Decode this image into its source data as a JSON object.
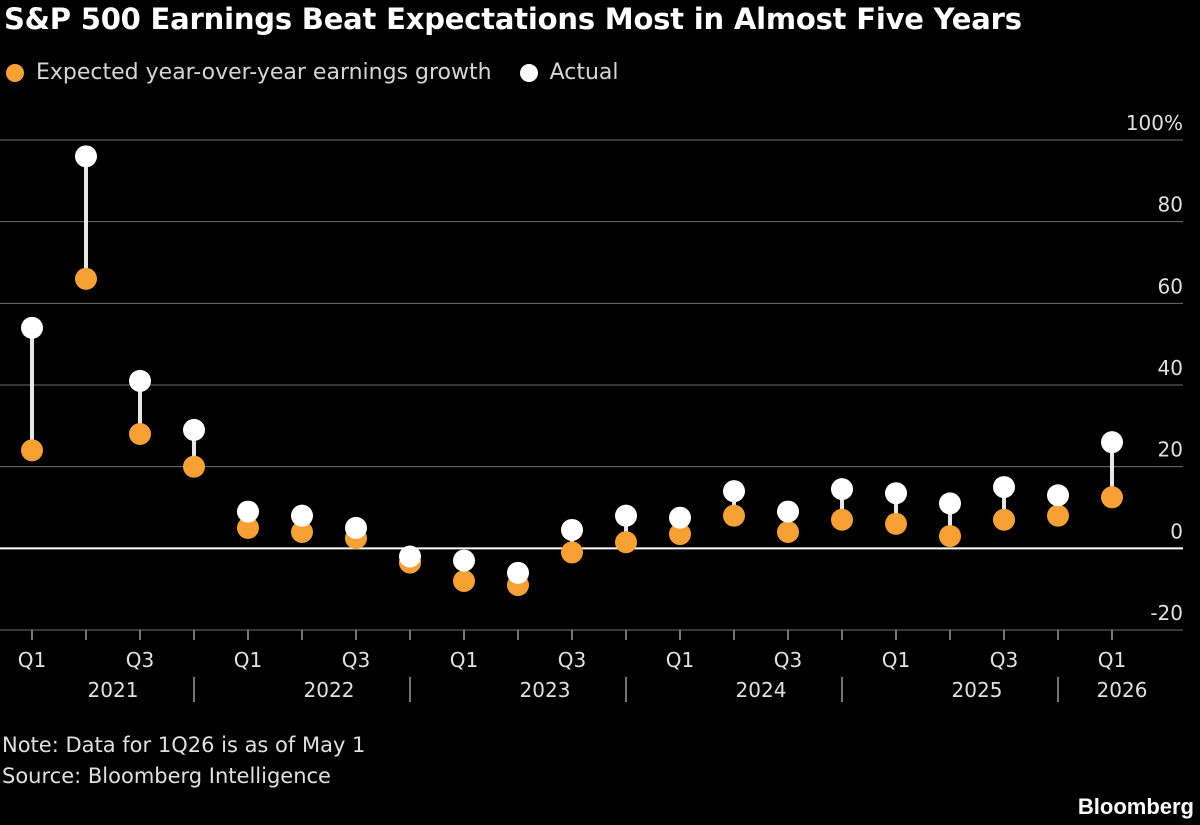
{
  "title": "S&P 500 Earnings Beat Expectations Most in Almost Five Years",
  "legend": [
    {
      "label": "Expected year-over-year earnings growth",
      "color": "#f7a135"
    },
    {
      "label": "Actual",
      "color": "#ffffff"
    }
  ],
  "note": "Note: Data for 1Q26 is as of May 1",
  "source": "Source: Bloomberg Intelligence",
  "brand": "Bloomberg",
  "chart_data": {
    "type": "scatter",
    "categories": [
      "Q1 2021",
      "Q2 2021",
      "Q3 2021",
      "Q4 2021",
      "Q1 2022",
      "Q2 2022",
      "Q3 2022",
      "Q4 2022",
      "Q1 2023",
      "Q2 2023",
      "Q3 2023",
      "Q4 2023",
      "Q1 2024",
      "Q2 2024",
      "Q3 2024",
      "Q4 2024",
      "Q1 2025",
      "Q2 2025",
      "Q3 2025",
      "Q4 2025",
      "Q1 2026"
    ],
    "series": [
      {
        "name": "Expected year-over-year earnings growth",
        "color": "#f7a135",
        "values": [
          24,
          66,
          28,
          20,
          5,
          4,
          2.5,
          -3.5,
          -8,
          -9,
          -1,
          1.5,
          3.5,
          8,
          4,
          7,
          6,
          3,
          7,
          8,
          12.5
        ]
      },
      {
        "name": "Actual",
        "color": "#ffffff",
        "values": [
          54,
          96,
          41,
          29,
          9,
          8,
          5,
          -2,
          -3,
          -6,
          4.5,
          8,
          7.5,
          14,
          9,
          14.5,
          13.5,
          11,
          15,
          13,
          26
        ]
      }
    ],
    "ylim": [
      -20,
      100
    ],
    "yticks": [
      {
        "value": 100,
        "label": "100%"
      },
      {
        "value": 80,
        "label": "80"
      },
      {
        "value": 60,
        "label": "60"
      },
      {
        "value": 40,
        "label": "40"
      },
      {
        "value": 20,
        "label": "20"
      },
      {
        "value": 0,
        "label": "0"
      },
      {
        "value": -20,
        "label": "-20"
      }
    ],
    "xtick_labels": [
      {
        "index": 0,
        "label": "Q1"
      },
      {
        "index": 2,
        "label": "Q3"
      },
      {
        "index": 4,
        "label": "Q1"
      },
      {
        "index": 6,
        "label": "Q3"
      },
      {
        "index": 8,
        "label": "Q1"
      },
      {
        "index": 10,
        "label": "Q3"
      },
      {
        "index": 12,
        "label": "Q1"
      },
      {
        "index": 14,
        "label": "Q3"
      },
      {
        "index": 16,
        "label": "Q1"
      },
      {
        "index": 18,
        "label": "Q3"
      },
      {
        "index": 20,
        "label": "Q1"
      }
    ],
    "year_labels": [
      "2021",
      "2022",
      "2023",
      "2024",
      "2025",
      "2026"
    ],
    "grid": true,
    "legend_position": "top-left"
  }
}
